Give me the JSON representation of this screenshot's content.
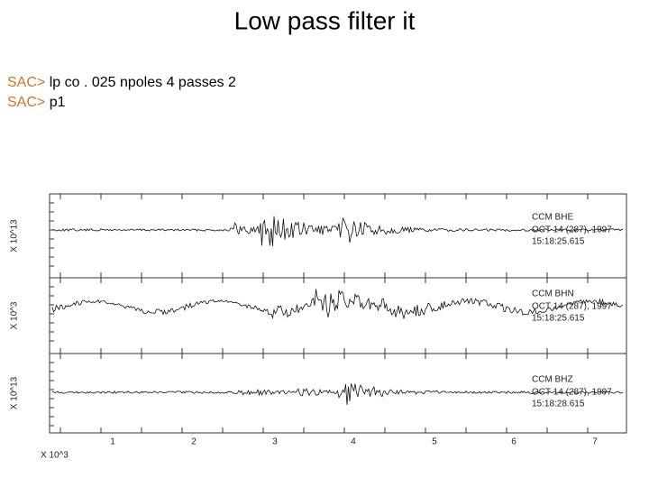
{
  "slide": {
    "title": "Low pass filter it",
    "commands": [
      {
        "prompt": "SAC>",
        "text": "lp co . 025 npoles 4 passes 2"
      },
      {
        "prompt": "SAC>",
        "text": "p1"
      }
    ],
    "plot": {
      "traces": [
        {
          "station": "CCM  BHE",
          "date": "OCT 14 (287), 1997",
          "time": "15:18:25.615",
          "ylabel": "X 10^13"
        },
        {
          "station": "CCM  BHN",
          "date": "OCT 14 (287), 1997",
          "time": "15:18:25.615",
          "ylabel": "X 10^3"
        },
        {
          "station": "CCM  BHZ",
          "date": "OCT 14 (287), 1997",
          "time": "15:18:28.615",
          "ylabel": "X 10^13"
        }
      ],
      "xtick_labels": [
        "1",
        "2",
        "3",
        "4",
        "5",
        "6",
        "7"
      ],
      "xlabel": "X 10^3"
    }
  }
}
